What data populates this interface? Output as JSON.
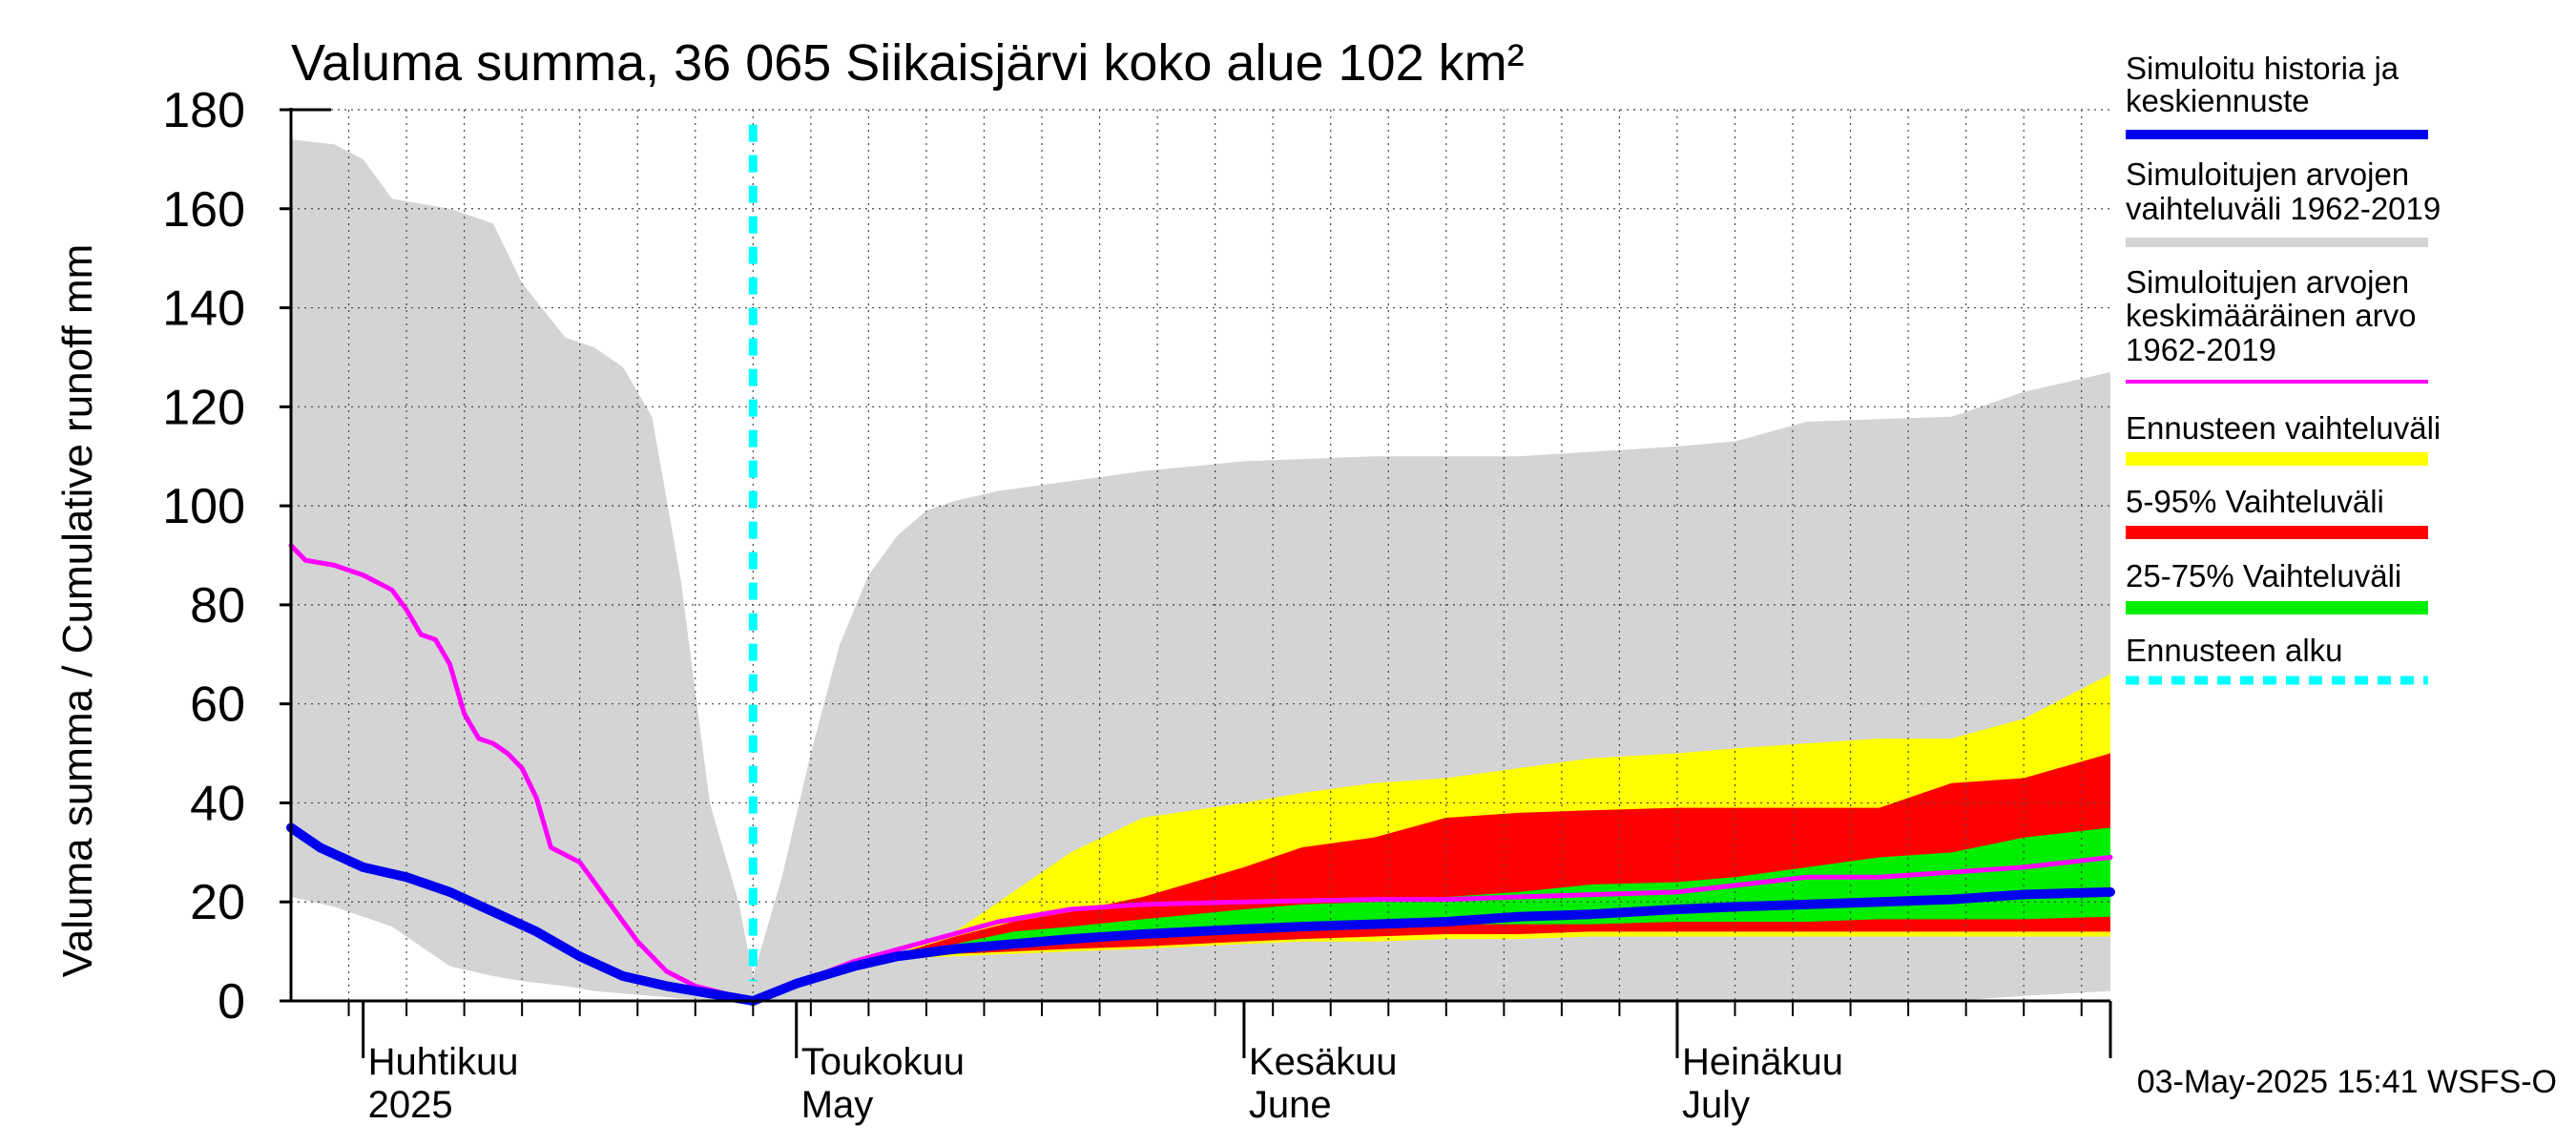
{
  "chart_data": {
    "type": "area",
    "title": "Valuma summa, 36 065 Siikaisjärvi koko alue 102 km²",
    "ylabel": "Valuma summa / Cumulative runoff    mm",
    "ylim": [
      0,
      180
    ],
    "y_ticks": [
      "0",
      "20",
      "40",
      "60",
      "80",
      "100",
      "120",
      "140",
      "160",
      "180"
    ],
    "x_range": [
      "2025-03-27",
      "2025-07-31"
    ],
    "grid": true,
    "month_labels": [
      {
        "date": "2025-04-01",
        "fi": "Huhtikuu",
        "en": "2025"
      },
      {
        "date": "2025-05-01",
        "fi": "Toukokuu",
        "en": "May"
      },
      {
        "date": "2025-06-01",
        "fi": "Kesäkuu",
        "en": "June"
      },
      {
        "date": "2025-07-01",
        "fi": "Heinäkuu",
        "en": "July"
      }
    ],
    "forecast_start": "2025-04-28",
    "hist_range": {
      "x": [
        "2025-03-27",
        "2025-03-30",
        "2025-04-01",
        "2025-04-03",
        "2025-04-07",
        "2025-04-10",
        "2025-04-12",
        "2025-04-15",
        "2025-04-17",
        "2025-04-19",
        "2025-04-21",
        "2025-04-23",
        "2025-04-25",
        "2025-04-27",
        "2025-04-28",
        "2025-04-30",
        "2025-05-02",
        "2025-05-04",
        "2025-05-06",
        "2025-05-08",
        "2025-05-10",
        "2025-05-12",
        "2025-05-15",
        "2025-05-20",
        "2025-05-25",
        "2025-06-01",
        "2025-06-10",
        "2025-06-20",
        "2025-07-01",
        "2025-07-05",
        "2025-07-10",
        "2025-07-20",
        "2025-07-25",
        "2025-07-31"
      ],
      "upper": [
        174,
        173,
        170,
        162,
        160,
        157,
        145,
        134,
        132,
        128,
        118,
        85,
        40,
        20,
        5,
        25,
        50,
        72,
        86,
        94,
        99,
        101,
        103,
        105,
        107,
        109,
        110,
        110,
        112,
        113,
        117,
        118,
        123,
        127
      ],
      "lower": [
        21,
        19,
        17,
        15,
        7,
        5,
        4,
        3,
        2,
        1.5,
        1,
        0.5,
        0.3,
        0.1,
        0,
        0,
        0,
        0,
        0,
        0,
        0,
        0,
        0,
        0,
        0,
        0,
        0,
        0,
        0,
        0,
        0,
        0,
        1,
        2
      ]
    },
    "ensemble": {
      "x": [
        "2025-04-28",
        "2025-05-01",
        "2025-05-05",
        "2025-05-08",
        "2025-05-12",
        "2025-05-16",
        "2025-05-20",
        "2025-05-25",
        "2025-06-01",
        "2025-06-05",
        "2025-06-10",
        "2025-06-15",
        "2025-06-20",
        "2025-06-25",
        "2025-07-01",
        "2025-07-05",
        "2025-07-10",
        "2025-07-15",
        "2025-07-20",
        "2025-07-25",
        "2025-07-31"
      ],
      "range_lo": [
        0,
        3,
        7,
        8.5,
        9,
        9.5,
        10,
        10.5,
        11.5,
        12,
        12,
        12.5,
        12.5,
        13,
        13,
        13,
        13,
        13,
        13,
        13,
        13
      ],
      "range_hi": [
        0,
        4,
        7.5,
        9.5,
        14,
        22,
        30,
        37,
        40,
        42,
        44,
        45,
        47,
        49,
        50,
        51,
        52,
        53,
        53,
        57,
        66
      ],
      "p5": [
        0,
        3,
        7,
        8.5,
        9.5,
        10,
        10.5,
        11,
        12,
        12.5,
        13,
        13.5,
        13.5,
        14,
        14,
        14,
        14,
        14,
        14,
        14,
        14
      ],
      "p95": [
        0,
        4,
        7.5,
        9.5,
        13,
        16,
        18,
        21,
        27,
        31,
        33,
        37,
        38,
        38.5,
        39,
        39,
        39,
        39,
        44,
        45,
        50
      ],
      "p25": [
        0,
        3,
        7,
        8.5,
        9.5,
        11,
        12,
        13,
        14,
        14.5,
        15,
        15.5,
        15.5,
        15.5,
        16,
        16,
        16,
        16.5,
        16.5,
        16.5,
        17
      ],
      "p75": [
        0,
        4,
        7.5,
        9.5,
        11.5,
        14,
        15,
        16.5,
        18.5,
        19.5,
        20,
        21,
        22,
        23.5,
        24,
        25,
        27,
        29,
        30,
        33,
        35
      ],
      "median": [
        0,
        3.5,
        7,
        9,
        10.5,
        11.5,
        12.5,
        13.5,
        14.5,
        15,
        15.5,
        16,
        17,
        17.5,
        18.5,
        19,
        19.5,
        20,
        20.5,
        21.5,
        22
      ]
    },
    "sim_history": {
      "x": [
        "2025-03-27",
        "2025-03-29",
        "2025-04-01",
        "2025-04-04",
        "2025-04-07",
        "2025-04-10",
        "2025-04-13",
        "2025-04-16",
        "2025-04-19",
        "2025-04-22",
        "2025-04-25",
        "2025-04-28"
      ],
      "y": [
        35,
        31,
        27,
        25,
        22,
        18,
        14,
        9,
        5,
        3,
        1.5,
        0
      ]
    },
    "mean": {
      "x": [
        "2025-03-27",
        "2025-03-28",
        "2025-03-30",
        "2025-04-01",
        "2025-04-03",
        "2025-04-04",
        "2025-04-05",
        "2025-04-06",
        "2025-04-07",
        "2025-04-08",
        "2025-04-09",
        "2025-04-10",
        "2025-04-11",
        "2025-04-12",
        "2025-04-13",
        "2025-04-14",
        "2025-04-16",
        "2025-04-18",
        "2025-04-20",
        "2025-04-22",
        "2025-04-24",
        "2025-04-26",
        "2025-04-28",
        "2025-05-01",
        "2025-05-05",
        "2025-05-10",
        "2025-05-15",
        "2025-05-20",
        "2025-05-25",
        "2025-06-01",
        "2025-06-10",
        "2025-06-15",
        "2025-06-20",
        "2025-07-01",
        "2025-07-10",
        "2025-07-15",
        "2025-07-20",
        "2025-07-25",
        "2025-07-31"
      ],
      "y": [
        92,
        89,
        88,
        86,
        83,
        79,
        74,
        73,
        68,
        58,
        53,
        52,
        50,
        47,
        41,
        31,
        28,
        20,
        12,
        6,
        3,
        1.5,
        0,
        3.5,
        8,
        12,
        16,
        18.5,
        19.5,
        20,
        20.5,
        20.5,
        21,
        22,
        25,
        25,
        26,
        27,
        29
      ]
    },
    "series": [
      {
        "name": "Simuloitu historia ja keskiennuste",
        "color": "#0000ee"
      },
      {
        "name": "Simuloitujen arvojen vaihteluväli 1962-2019",
        "color": "#d4d4d4"
      },
      {
        "name": "Simuloitujen arvojen keskimääräinen arvo 1962-2019",
        "color": "#ff00ff"
      },
      {
        "name": "Ennusteen vaihteluväli",
        "color": "#ffff00"
      },
      {
        "name": "5-95% Vaihteluväli",
        "color": "#ff0000"
      },
      {
        "name": "25-75% Vaihteluväli",
        "color": "#00ee00"
      },
      {
        "name": "Ennusteen alku",
        "color": "#00ffff"
      }
    ],
    "legend": {
      "placement": "right",
      "entries": [
        {
          "lines": [
            "Simuloitu historia ja",
            "keskiennuste"
          ],
          "color": "#0000ee",
          "style": "solid"
        },
        {
          "lines": [
            "Simuloitujen arvojen",
            "vaihteluväli 1962-2019"
          ],
          "color": "#d4d4d4",
          "style": "solid"
        },
        {
          "lines": [
            "Simuloitujen arvojen",
            "keskimääräinen arvo",
            "   1962-2019"
          ],
          "color": "#ff00ff",
          "style": "thin"
        },
        {
          "lines": [
            "Ennusteen vaihteluväli"
          ],
          "color": "#ffff00",
          "style": "solid"
        },
        {
          "lines": [
            "5-95% Vaihteluväli"
          ],
          "color": "#ff0000",
          "style": "solid"
        },
        {
          "lines": [
            "25-75% Vaihteluväli"
          ],
          "color": "#00ee00",
          "style": "solid"
        },
        {
          "lines": [
            "Ennusteen alku"
          ],
          "color": "#00ffff",
          "style": "dashed"
        }
      ]
    },
    "footer": "03-May-2025 15:41 WSFS-O"
  }
}
